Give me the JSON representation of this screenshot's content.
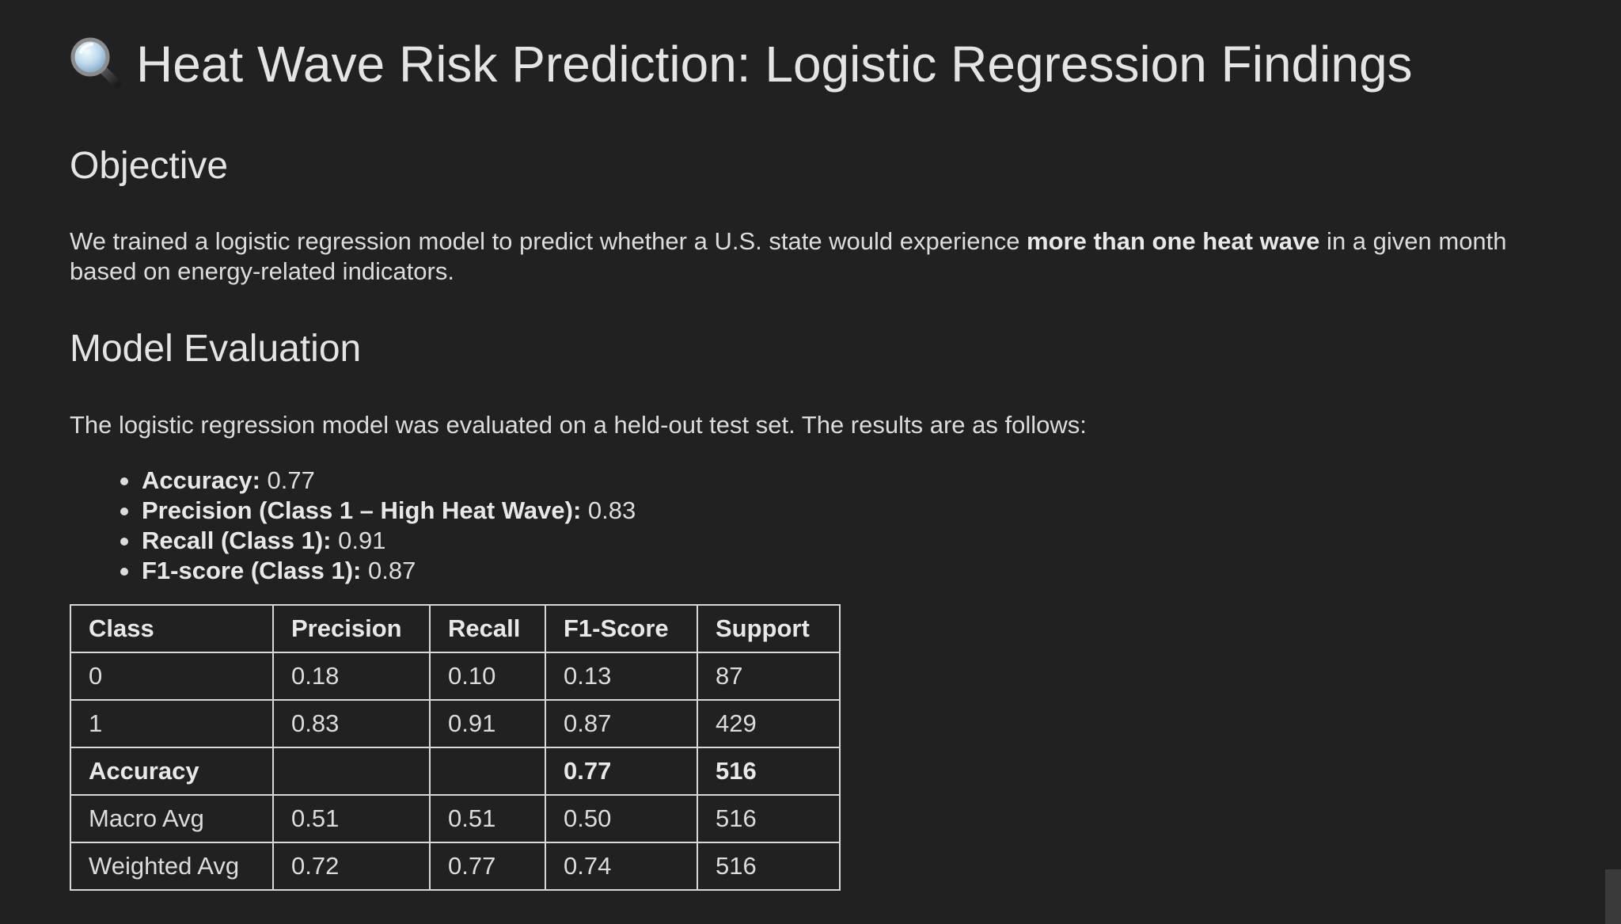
{
  "title": {
    "icon": "magnifying-glass-icon",
    "text": "Heat Wave Risk Prediction: Logistic Regression Findings"
  },
  "objective": {
    "heading": "Objective",
    "text_before": "We trained a logistic regression model to predict whether a U.S. state would experience ",
    "text_bold": "more than one heat wave",
    "text_after": " in a given month based on energy-related indicators."
  },
  "evaluation": {
    "heading": "Model Evaluation",
    "intro": "The logistic regression model was evaluated on a held-out test set. The results are as follows:",
    "metrics": [
      {
        "label": "Accuracy:",
        "value": " 0.77"
      },
      {
        "label": "Precision (Class 1 – High Heat Wave):",
        "value": " 0.83"
      },
      {
        "label": "Recall (Class 1):",
        "value": " 0.91"
      },
      {
        "label": "F1-score (Class 1):",
        "value": " 0.87"
      }
    ],
    "table": {
      "headers": [
        "Class",
        "Precision",
        "Recall",
        "F1-Score",
        "Support"
      ],
      "rows": [
        [
          "0",
          "0.18",
          "0.10",
          "0.13",
          "87"
        ],
        [
          "1",
          "0.83",
          "0.91",
          "0.87",
          "429"
        ],
        [
          "Accuracy",
          "",
          "",
          "0.77",
          "516"
        ],
        [
          "Macro Avg",
          "0.51",
          "0.51",
          "0.50",
          "516"
        ],
        [
          "Weighted Avg",
          "0.72",
          "0.77",
          "0.74",
          "516"
        ]
      ]
    }
  }
}
